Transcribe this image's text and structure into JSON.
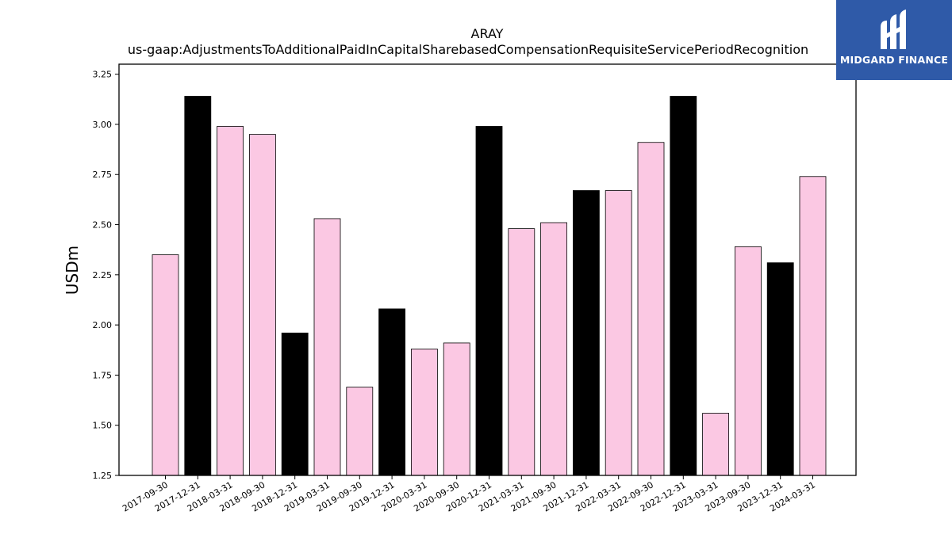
{
  "chart_data": {
    "type": "bar",
    "title": "ARAY",
    "subtitle": "us-gaap:AdjustmentsToAdditionalPaidInCapitalSharebasedCompensationRequisiteServicePeriodRecognition",
    "xlabel": "",
    "ylabel": "USDm",
    "ylim": [
      1.25,
      3.3
    ],
    "yticks": [
      "1.25",
      "1.50",
      "1.75",
      "2.00",
      "2.25",
      "2.50",
      "2.75",
      "3.00",
      "3.25"
    ],
    "grid": false,
    "categories": [
      "2017-09-30",
      "2017-12-31",
      "2018-03-31",
      "2018-09-30",
      "2018-12-31",
      "2019-03-31",
      "2019-09-30",
      "2019-12-31",
      "2020-03-31",
      "2020-09-30",
      "2020-12-31",
      "2021-03-31",
      "2021-09-30",
      "2021-12-31",
      "2022-03-31",
      "2022-09-30",
      "2022-12-31",
      "2023-03-31",
      "2023-09-30",
      "2023-12-31",
      "2024-03-31"
    ],
    "values": [
      2.35,
      3.14,
      2.99,
      2.95,
      1.96,
      2.53,
      1.69,
      2.08,
      1.88,
      1.91,
      2.99,
      2.48,
      2.51,
      2.67,
      2.67,
      2.91,
      3.14,
      1.56,
      2.39,
      2.31,
      2.74
    ],
    "bar_colors": [
      "#fbc8e3",
      "#000000",
      "#fbc8e3",
      "#fbc8e3",
      "#000000",
      "#fbc8e3",
      "#fbc8e3",
      "#000000",
      "#fbc8e3",
      "#fbc8e3",
      "#000000",
      "#fbc8e3",
      "#fbc8e3",
      "#000000",
      "#fbc8e3",
      "#fbc8e3",
      "#000000",
      "#fbc8e3",
      "#fbc8e3",
      "#000000",
      "#fbc8e3"
    ]
  },
  "logo": {
    "text": "MIDGARD FINANCE",
    "background": "#2f5aa8",
    "icon": "midgard-finance-logo-icon"
  }
}
